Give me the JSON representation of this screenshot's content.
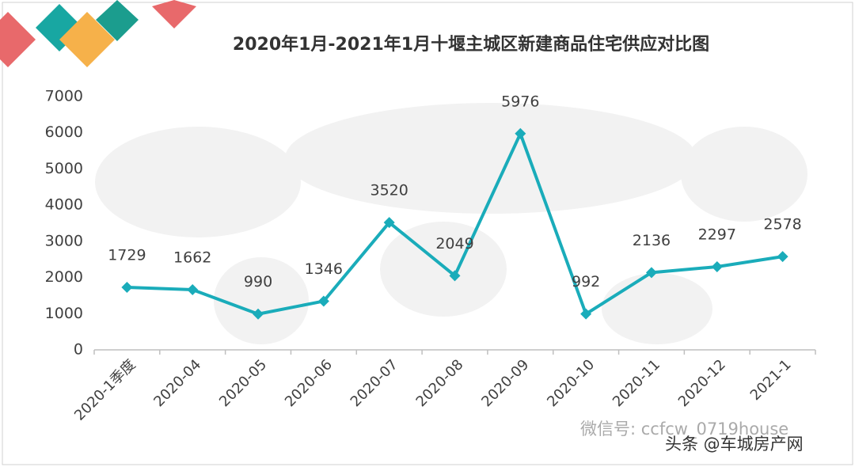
{
  "chart_data": {
    "type": "line",
    "title": "2020年1月-2021年1月十堰主城区新建商品住宅供应对比图",
    "categories": [
      "2020-1季度",
      "2020-04",
      "2020-05",
      "2020-06",
      "2020-07",
      "2020-08",
      "2020-09",
      "2020-10",
      "2020-11",
      "2020-12",
      "2021-1"
    ],
    "values": [
      1729,
      1662,
      990,
      1346,
      3520,
      2049,
      5976,
      992,
      2136,
      2297,
      2578
    ],
    "color": "#1aacba",
    "ylim": [
      0,
      7000
    ],
    "yticks": [
      0,
      1000,
      2000,
      3000,
      4000,
      5000,
      6000,
      7000
    ],
    "grid": false
  },
  "watermarks": [
    "微信号: ccfcw_0719house",
    "头条 @车城房产网"
  ]
}
